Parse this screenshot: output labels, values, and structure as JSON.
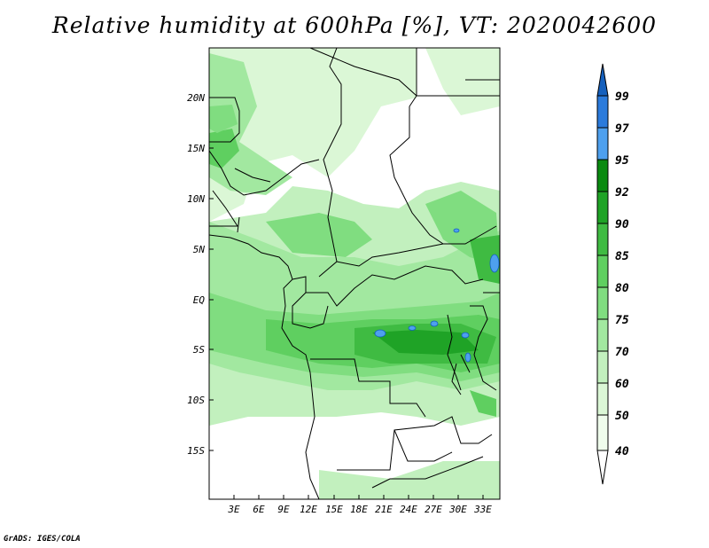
{
  "title": "Relative humidity at 600hPa [%], VT: 2020042600",
  "credit": "GrADS: IGES/COLA",
  "map": {
    "lat_labels": [
      "20N",
      "15N",
      "10N",
      "5N",
      "EQ",
      "5S",
      "10S",
      "15S"
    ],
    "lon_labels": [
      "3E",
      "6E",
      "9E",
      "12E",
      "15E",
      "18E",
      "21E",
      "24E",
      "27E",
      "30E",
      "33E"
    ]
  },
  "colorbar": {
    "levels": [
      "99",
      "97",
      "95",
      "92",
      "90",
      "85",
      "80",
      "75",
      "70",
      "60",
      "50",
      "40"
    ],
    "colors": [
      "#1560bd",
      "#2b7bdc",
      "#4ea0ee",
      "#0a8a10",
      "#1fa326",
      "#3fbb42",
      "#5fcf60",
      "#80dd80",
      "#a2e8a0",
      "#c2f0be",
      "#dbf7d6",
      "#effcec",
      "#ffffff"
    ]
  }
}
